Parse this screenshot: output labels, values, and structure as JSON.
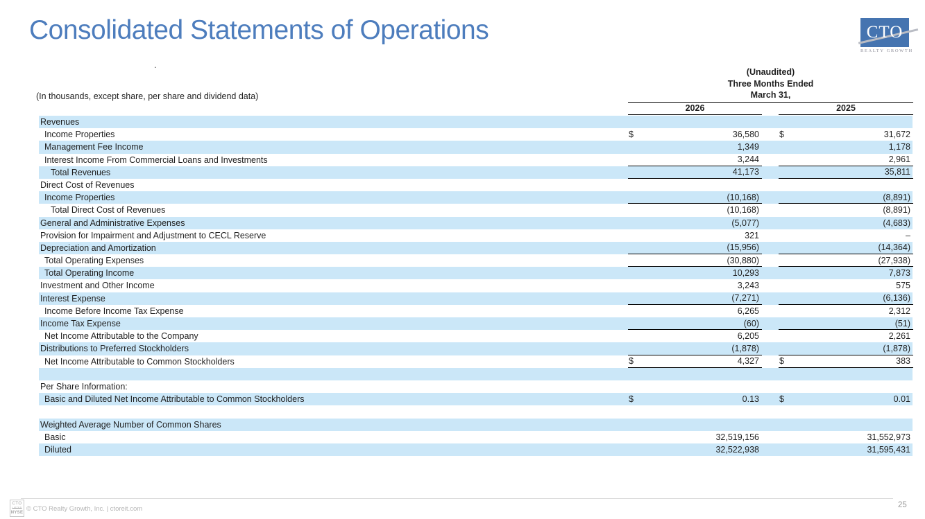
{
  "page": {
    "title": "Consolidated Statements of Operations",
    "stray_dot": ".",
    "page_number": "25",
    "footer_text": "© CTO Realty Growth, Inc. | ctoreit.com",
    "colors": {
      "accent_blue": "#4d7dbd",
      "row_blue": "#cbe7f8",
      "logo_blue": "#4574b0",
      "rule_black": "#000000"
    }
  },
  "logo": {
    "text": "CTO",
    "subtext": "REALTY GROWTH"
  },
  "nyse_badge": {
    "line1": "CTO",
    "line2": "LISTED",
    "line3": "NYSE"
  },
  "table": {
    "note": "(In thousands, except share, per share and dividend data)",
    "header": {
      "unaudited": "(Unaudited)",
      "period": "Three Months Ended",
      "date": "March 31,",
      "col_2026": "2026",
      "col_2025": "2025"
    },
    "rows": [
      {
        "label": "Revenues",
        "indent": 0,
        "shade": "blue",
        "d1": "",
        "v1": "",
        "d2": "",
        "v2": "",
        "ul": false
      },
      {
        "label": "Income Properties",
        "indent": 1,
        "shade": "white",
        "d1": "$",
        "v1": "36,580",
        "d2": "$",
        "v2": "31,672",
        "ul": false
      },
      {
        "label": "Management Fee Income",
        "indent": 1,
        "shade": "blue",
        "d1": "",
        "v1": "1,349",
        "d2": "",
        "v2": "1,178",
        "ul": false
      },
      {
        "label": "Interest Income From Commercial Loans and Investments",
        "indent": 1,
        "shade": "white",
        "d1": "",
        "v1": "3,244",
        "d2": "",
        "v2": "2,961",
        "ul": true
      },
      {
        "label": "Total Revenues",
        "indent": 2,
        "shade": "blue",
        "d1": "",
        "v1": "41,173",
        "d2": "",
        "v2": "35,811",
        "ul": true
      },
      {
        "label": "Direct Cost of Revenues",
        "indent": 0,
        "shade": "white",
        "d1": "",
        "v1": "",
        "d2": "",
        "v2": "",
        "ul": false
      },
      {
        "label": "Income Properties",
        "indent": 1,
        "shade": "blue",
        "d1": "",
        "v1": "(10,168)",
        "d2": "",
        "v2": "(8,891)",
        "ul": true
      },
      {
        "label": "Total Direct Cost of Revenues",
        "indent": 2,
        "shade": "white",
        "d1": "",
        "v1": "(10,168)",
        "d2": "",
        "v2": "(8,891)",
        "ul": false
      },
      {
        "label": "General and Administrative Expenses",
        "indent": 0,
        "shade": "blue",
        "d1": "",
        "v1": "(5,077)",
        "d2": "",
        "v2": "(4,683)",
        "ul": false
      },
      {
        "label": "Provision for Impairment and Adjustment to CECL Reserve",
        "indent": 0,
        "shade": "white",
        "d1": "",
        "v1": "321",
        "d2": "",
        "v2": "–",
        "ul": false
      },
      {
        "label": "Depreciation and Amortization",
        "indent": 0,
        "shade": "blue",
        "d1": "",
        "v1": "(15,956)",
        "d2": "",
        "v2": "(14,364)",
        "ul": true
      },
      {
        "label": "Total Operating Expenses",
        "indent": 1,
        "shade": "white",
        "d1": "",
        "v1": "(30,880)",
        "d2": "",
        "v2": "(27,938)",
        "ul": true
      },
      {
        "label": "Total Operating Income",
        "indent": 1,
        "shade": "blue",
        "d1": "",
        "v1": "10,293",
        "d2": "",
        "v2": "7,873",
        "ul": false
      },
      {
        "label": "Investment and Other Income",
        "indent": 0,
        "shade": "white",
        "d1": "",
        "v1": "3,243",
        "d2": "",
        "v2": "575",
        "ul": false
      },
      {
        "label": "Interest Expense",
        "indent": 0,
        "shade": "blue",
        "d1": "",
        "v1": "(7,271)",
        "d2": "",
        "v2": "(6,136)",
        "ul": true
      },
      {
        "label": "Income Before Income Tax Expense",
        "indent": 1,
        "shade": "white",
        "d1": "",
        "v1": "6,265",
        "d2": "",
        "v2": "2,312",
        "ul": false
      },
      {
        "label": "Income Tax Expense",
        "indent": 0,
        "shade": "blue",
        "d1": "",
        "v1": "(60)",
        "d2": "",
        "v2": "(51)",
        "ul": true
      },
      {
        "label": "Net Income Attributable to the Company",
        "indent": 1,
        "shade": "white",
        "d1": "",
        "v1": "6,205",
        "d2": "",
        "v2": "2,261",
        "ul": false
      },
      {
        "label": "Distributions to Preferred Stockholders",
        "indent": 0,
        "shade": "blue",
        "d1": "",
        "v1": "(1,878)",
        "d2": "",
        "v2": "(1,878)",
        "ul": true
      },
      {
        "label": "Net Income Attributable to Common Stockholders",
        "indent": 1,
        "shade": "white",
        "d1": "$",
        "v1": "4,327",
        "d2": "$",
        "v2": "383",
        "ul": true
      },
      {
        "label": "",
        "indent": 0,
        "shade": "blue",
        "d1": "",
        "v1": "",
        "d2": "",
        "v2": "",
        "ul": false
      },
      {
        "label": "Per Share Information:",
        "indent": 0,
        "shade": "white",
        "d1": "",
        "v1": "",
        "d2": "",
        "v2": "",
        "ul": false
      },
      {
        "label": "Basic and Diluted Net Income Attributable to Common Stockholders",
        "indent": 1,
        "shade": "blue",
        "d1": "$",
        "v1": "0.13",
        "d2": "$",
        "v2": "0.01",
        "ul": false
      },
      {
        "label": "",
        "indent": 0,
        "shade": "white",
        "d1": "",
        "v1": "",
        "d2": "",
        "v2": "",
        "ul": false
      },
      {
        "label": "Weighted Average Number of Common Shares",
        "indent": 0,
        "shade": "blue",
        "d1": "",
        "v1": "",
        "d2": "",
        "v2": "",
        "ul": false
      },
      {
        "label": "Basic",
        "indent": 1,
        "shade": "white",
        "d1": "",
        "v1": "32,519,156",
        "d2": "",
        "v2": "31,552,973",
        "ul": false
      },
      {
        "label": "Diluted",
        "indent": 1,
        "shade": "blue",
        "d1": "",
        "v1": "32,522,938",
        "d2": "",
        "v2": "31,595,431",
        "ul": false
      }
    ]
  }
}
